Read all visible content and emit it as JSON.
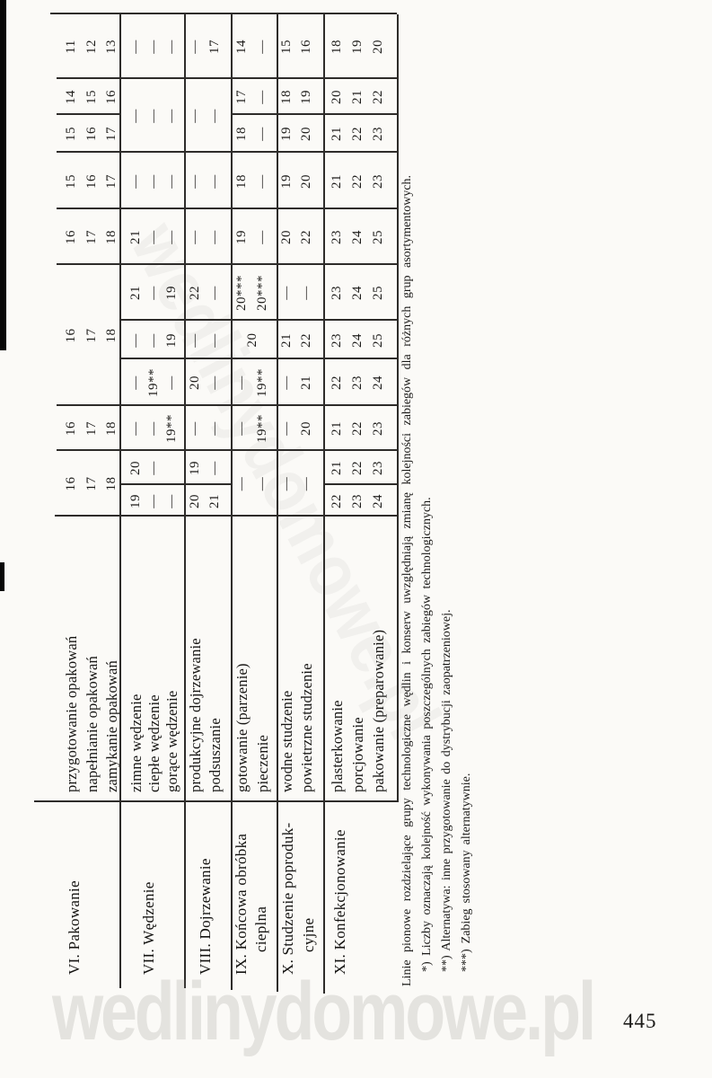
{
  "page": {
    "number": "445"
  },
  "watermark": {
    "text": "wedlinydomowe.pl"
  },
  "table": {
    "groups": [
      {
        "label_lines": [
          "VI. Pakowanie"
        ]
      },
      {
        "label_lines": [
          "VII. Wędzenie"
        ]
      },
      {
        "label_lines": [
          "VIII. Dojrzewanie"
        ]
      },
      {
        "label_lines": [
          "IX. Końcowa obróbka",
          "cieplna"
        ]
      },
      {
        "label_lines": [
          "X. Studzenie poproduk-",
          "cyjne"
        ]
      },
      {
        "label_lines": [
          "XI. Konfekcjonowanie"
        ]
      }
    ],
    "row_labels": [
      "przygotowanie opakowań",
      "napełnianie opakowań",
      "zamykanie opakowań",
      "zimne wędzenie",
      "ciepłe wędzenie",
      "gorące wędzenie",
      "produkcyjne dojrzewanie",
      "podsuszanie",
      "gotowanie (parzenie)",
      "pieczenie",
      "wodne studzenie",
      "powietrzne studzenie",
      "plasterkowanie",
      "porcjowanie",
      "pakowanie (preparowanie)"
    ],
    "columns": [
      [
        "",
        "",
        "",
        "19",
        "—",
        "—",
        "20",
        "21",
        "",
        "",
        "",
        "",
        "22",
        "23",
        "24"
      ],
      [
        "",
        "",
        "",
        "20",
        "—",
        "",
        "19",
        "—",
        "",
        "",
        "",
        "",
        "21",
        "22",
        "23"
      ],
      [
        "16",
        "17",
        "18",
        "—",
        "—",
        "19**",
        "—",
        "—",
        "—",
        "19**",
        "—",
        "20",
        "21",
        "22",
        "23"
      ],
      [
        "",
        "",
        "",
        "—",
        "19**",
        "—",
        "20",
        "—",
        "—",
        "19**",
        "—",
        "21",
        "22",
        "23",
        "24"
      ],
      [
        "",
        "",
        "",
        "—",
        "—",
        "19",
        "—",
        "—",
        "",
        "",
        "21",
        "22",
        "23",
        "24",
        "25"
      ],
      [
        "",
        "",
        "",
        "21",
        "—",
        "19",
        "22",
        "—",
        "20***",
        "20***",
        "—",
        "—",
        "23",
        "24",
        "25"
      ],
      [
        "16",
        "17",
        "18",
        "21",
        "—",
        "—",
        "—",
        "—",
        "19",
        "—",
        "20",
        "22",
        "23",
        "24",
        "25"
      ],
      [
        "15",
        "16",
        "17",
        "—",
        "—",
        "—",
        "—",
        "—",
        "18",
        "—",
        "19",
        "20",
        "21",
        "22",
        "23"
      ],
      [
        "15",
        "16",
        "17",
        "",
        "",
        "",
        "",
        "",
        "18",
        "—",
        "19",
        "20",
        "21",
        "22",
        "23"
      ],
      [
        "14",
        "15",
        "16",
        "",
        "",
        "",
        "",
        "",
        "17",
        "—",
        "18",
        "19",
        "20",
        "21",
        "22"
      ],
      [
        "11",
        "12",
        "13",
        "—",
        "—",
        "—",
        "—",
        "17",
        "14",
        "—",
        "15",
        "16",
        "18",
        "19",
        "20"
      ]
    ],
    "merged_cells": [
      {
        "cols": [
          0,
          1
        ],
        "rows": [
          0
        ],
        "text": "16"
      },
      {
        "cols": [
          0,
          1
        ],
        "rows": [
          1
        ],
        "text": "17"
      },
      {
        "cols": [
          0,
          1
        ],
        "rows": [
          2
        ],
        "text": "18"
      },
      {
        "cols": [
          3,
          5
        ],
        "rows": [
          0
        ],
        "text": "16"
      },
      {
        "cols": [
          3,
          5
        ],
        "rows": [
          1
        ],
        "text": "17"
      },
      {
        "cols": [
          3,
          5
        ],
        "rows": [
          2
        ],
        "text": "18"
      },
      {
        "cols": [
          8,
          9
        ],
        "rows": [
          3
        ],
        "text": "—"
      },
      {
        "cols": [
          8,
          9
        ],
        "rows": [
          4
        ],
        "text": "—"
      },
      {
        "cols": [
          8,
          9
        ],
        "rows": [
          5
        ],
        "text": "—"
      },
      {
        "cols": [
          8,
          9
        ],
        "rows": [
          6
        ],
        "text": "—"
      },
      {
        "cols": [
          8,
          9
        ],
        "rows": [
          7
        ],
        "text": "—"
      },
      {
        "cols": [
          0,
          1
        ],
        "rows": [
          8
        ],
        "text": "—"
      },
      {
        "cols": [
          0,
          1
        ],
        "rows": [
          9
        ],
        "text": "—"
      },
      {
        "cols": [
          0,
          1
        ],
        "rows": [
          10
        ],
        "text": "—"
      },
      {
        "cols": [
          0,
          1
        ],
        "rows": [
          11
        ],
        "text": "—"
      },
      {
        "cols": [
          4,
          4
        ],
        "rows": [
          8,
          9
        ],
        "text": "20"
      }
    ]
  },
  "footnotes": [
    "Linie pionowe rozdzielające grupy technologiczne wędlin i konserw uwzględniają zmianę kolejności zabiegów dla różnych grup asortymentowych.",
    "*) Liczby oznaczają kolejność wykonywania poszczególnych zabiegów technologicznych.",
    "**) Alternatywa: inne przygotowanie do dystrybucji zaopatrzeniowej.",
    "***) Zabieg stosowany alternatywnie."
  ]
}
